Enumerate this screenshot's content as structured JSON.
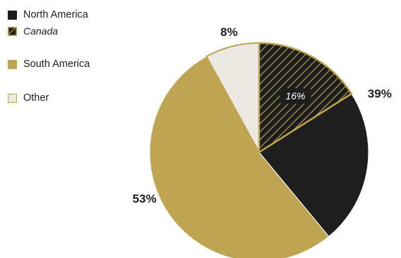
{
  "colors": {
    "north_america": "#1e1e1e",
    "south_america": "#bfa552",
    "other": "#ece9e3",
    "border": "#bfa552",
    "canada_hatch_bg": "#1e1e1e",
    "canada_hatch_line": "#bfa552"
  },
  "chart_data": {
    "type": "pie",
    "slices": [
      {
        "name": "North America",
        "value": 39,
        "label": "39%"
      },
      {
        "name": "South America",
        "value": 53,
        "label": "53%"
      },
      {
        "name": "Other",
        "value": 8,
        "label": "8%"
      }
    ],
    "sub_slices": [
      {
        "name": "Canada",
        "parent": "North America",
        "value": 16,
        "label": "16%",
        "pattern": "hatched"
      }
    ],
    "legend": {
      "placement": "top-left",
      "entries": [
        {
          "label": "North America",
          "style": "solid",
          "color": "#1e1e1e"
        },
        {
          "label": "Canada",
          "style": "hatched",
          "italic": true
        },
        {
          "label": "South America",
          "style": "solid",
          "color": "#bfa552"
        },
        {
          "label": "Other",
          "style": "outlined",
          "color": "#ece9e3"
        }
      ]
    }
  }
}
